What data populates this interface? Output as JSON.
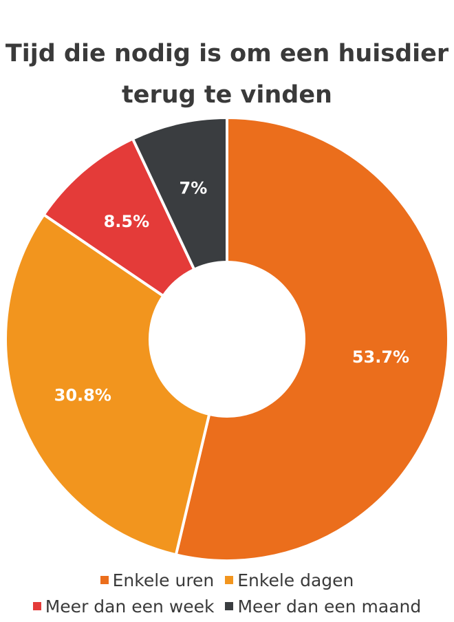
{
  "title": [
    "Tijd die nodig is om een huisdier",
    "terug te vinden"
  ],
  "chart_data": {
    "type": "pie",
    "title": "Tijd die nodig is om een huisdier terug te vinden",
    "categories": [
      "Enkele uren",
      "Enkele dagen",
      "Meer dan een week",
      "Meer dan een maand"
    ],
    "values": [
      53.7,
      30.8,
      8.5,
      7
    ],
    "labels": [
      "53.7%",
      "30.8%",
      "8.5%",
      "7%"
    ],
    "colors": [
      "#EB6E1C",
      "#F2951E",
      "#E43B39",
      "#3A3D40"
    ],
    "donut": true,
    "legend_position": "bottom"
  }
}
